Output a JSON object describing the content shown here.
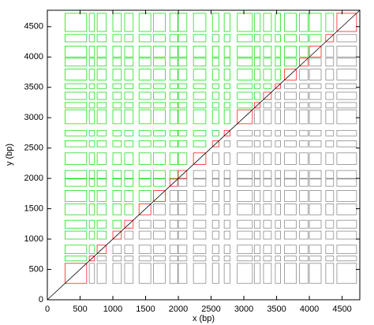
{
  "chart_data": {
    "type": "rect",
    "x_label": "x (bp)",
    "y_label": "y (bp)",
    "xlim": [
      0,
      4770
    ],
    "ylim": [
      0,
      4770
    ],
    "xticks": [
      0,
      500,
      1000,
      1500,
      2000,
      2500,
      3000,
      3500,
      4000,
      4500
    ],
    "yticks": [
      0,
      500,
      1000,
      1500,
      2000,
      2500,
      3000,
      3500,
      4000,
      4500
    ],
    "colors": {
      "upper": "#22dd22",
      "lower": "#8c8c8c",
      "diagonal": "#ff2020"
    },
    "segments": [
      [
        270,
        600
      ],
      [
        640,
        720
      ],
      [
        760,
        900
      ],
      [
        1000,
        1130
      ],
      [
        1180,
        1310
      ],
      [
        1400,
        1580
      ],
      [
        1620,
        1800
      ],
      [
        1870,
        1990
      ],
      [
        2000,
        2130
      ],
      [
        2230,
        2420
      ],
      [
        2520,
        2620
      ],
      [
        2700,
        2790
      ],
      [
        2900,
        3130
      ],
      [
        3160,
        3250
      ],
      [
        3300,
        3420
      ],
      [
        3480,
        3560
      ],
      [
        3620,
        3800
      ],
      [
        3850,
        3980
      ],
      [
        4000,
        4180
      ],
      [
        4250,
        4370
      ],
      [
        4420,
        4720
      ]
    ]
  }
}
